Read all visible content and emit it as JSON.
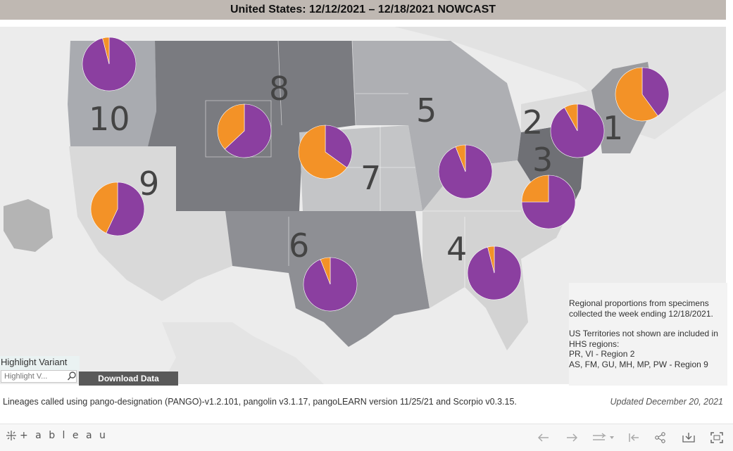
{
  "title": "United States: 12/12/2021 – 12/18/2021 NOWCAST",
  "colors": {
    "purple": "#8b3fa0",
    "orange": "#f39227"
  },
  "regions": [
    {
      "label": "10",
      "purple_share": 0.96
    },
    {
      "label": "8",
      "purple_share": 0.63
    },
    {
      "label": "9",
      "purple_share": 0.57
    },
    {
      "label": "7",
      "purple_share": 0.35
    },
    {
      "label": "6",
      "purple_share": 0.94
    },
    {
      "label": "5",
      "purple_share": 0.94
    },
    {
      "label": "4",
      "purple_share": 0.96
    },
    {
      "label": "3",
      "purple_share": 0.75
    },
    {
      "label": "2",
      "purple_share": 0.92
    },
    {
      "label": "1",
      "purple_share": 0.4
    }
  ],
  "notes": {
    "line1": "Regional proportions from specimens",
    "line2": "collected the week ending 12/18/2021.",
    "line3": "US Territories not shown are included in",
    "line4": "HHS regions:",
    "line5": "PR, VI - Region 2",
    "line6": "AS, FM, GU, MH, MP, PW - Region 9"
  },
  "highlight": {
    "label": "Highlight Variant",
    "placeholder": "Highlight V..."
  },
  "download_label": "Download Data",
  "footnote": "Lineages called using pango-designation (PANGO)-v1.2.101, pangolin v3.1.17, pangoLEARN version 11/25/21 and Scorpio v0.3.15.",
  "updated": "Updated December 20, 2021",
  "toolbar": {
    "logo": "+ a b l e a u",
    "icons": [
      "undo-icon",
      "redo-icon",
      "revert-icon",
      "reset-icon",
      "share-icon",
      "download-icon",
      "fullscreen-icon"
    ]
  }
}
